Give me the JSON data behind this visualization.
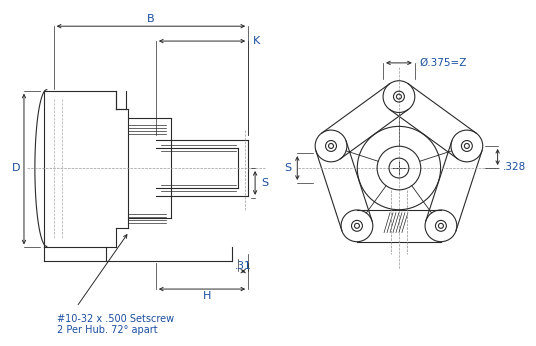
{
  "bg_color": "#ffffff",
  "line_color": "#2a2a2a",
  "dim_color": "#2a2a2a",
  "label_color": "#1a4fa0",
  "labels": {
    "B": "B",
    "K": "K",
    "D": "D",
    "S_left": "S",
    "S_right": "S",
    "H": "H",
    "dot31": ".31",
    "setscrew": "#10-32 x .500 Setscrew\n2 Per Hub. 72° apart",
    "diameter": "Ø.375=Z",
    "dim328": ".328"
  },
  "figsize": [
    5.36,
    3.46
  ],
  "dpi": 100
}
